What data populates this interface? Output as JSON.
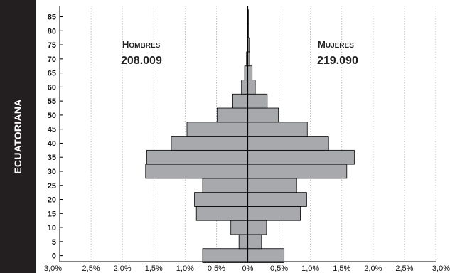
{
  "side_label": "ECUATORIANA",
  "chart_data": {
    "type": "bar",
    "orientation": "horizontal",
    "categories": [
      "0",
      "5",
      "10",
      "15",
      "20",
      "25",
      "30",
      "35",
      "40",
      "45",
      "50",
      "55",
      "60",
      "65",
      "70",
      "75",
      "80",
      "85"
    ],
    "series": [
      {
        "name": "Hombres",
        "values": [
          0.72,
          0.14,
          0.27,
          0.82,
          0.85,
          0.72,
          1.63,
          1.61,
          1.22,
          0.97,
          0.49,
          0.24,
          0.1,
          0.05,
          0.02,
          0.01,
          0.01,
          0.01
        ]
      },
      {
        "name": "Mujeres",
        "values": [
          0.58,
          0.22,
          0.3,
          0.84,
          0.94,
          0.78,
          1.58,
          1.7,
          1.29,
          0.95,
          0.49,
          0.31,
          0.12,
          0.07,
          0.03,
          0.02,
          0.01,
          0.01
        ]
      }
    ],
    "xlim": [
      -3.0,
      3.0
    ],
    "x_ticks": [
      "3,0%",
      "2,5%",
      "2,0%",
      "1,5%",
      "1,0%",
      "0,5%",
      "0%",
      "0,5%",
      "1,0%",
      "1,5%",
      "2,0%",
      "2,5%",
      "3,0%"
    ],
    "y_ticks": [
      "0",
      "5",
      "10",
      "15",
      "20",
      "25",
      "30",
      "35",
      "40",
      "45",
      "50",
      "55",
      "60",
      "65",
      "70",
      "75",
      "80",
      "85"
    ],
    "grid": {
      "vertical": true,
      "style": "dotted"
    },
    "annotations": [
      {
        "series": "Hombres",
        "label_first": "H",
        "label_rest": "OMBRES",
        "value": "208.009"
      },
      {
        "series": "Mujeres",
        "label_first": "M",
        "label_rest": "UJERES",
        "value": "219.090"
      }
    ],
    "colors": {
      "bar_fill": "#a7a9ac",
      "bar_stroke": "#000000",
      "grid": "#9a9a9a",
      "axis": "#000000"
    }
  }
}
